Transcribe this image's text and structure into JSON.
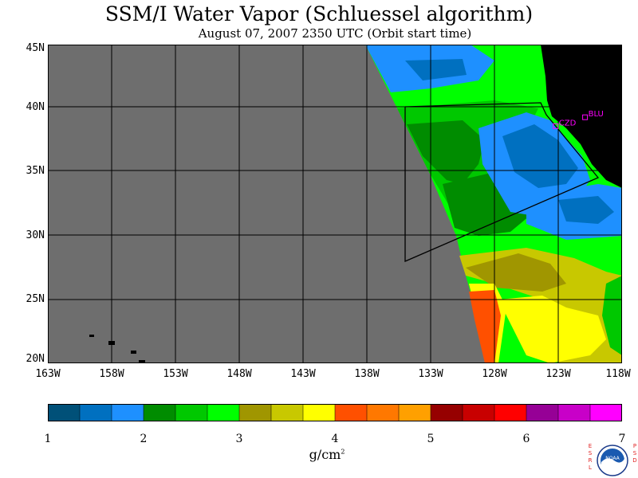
{
  "title": "SSM/I Water Vapor (Schluessel algorithm)",
  "subtitle": "August 07, 2007  2350 UTC  (Orbit start time)",
  "map": {
    "lat_labels": [
      "45N",
      "40N",
      "35N",
      "30N",
      "25N",
      "20N"
    ],
    "lon_labels": [
      "163W",
      "158W",
      "153W",
      "148W",
      "143W",
      "138W",
      "133W",
      "128W",
      "123W",
      "118W"
    ],
    "lat_range": [
      20,
      45
    ],
    "lon_range": [
      -163,
      -118
    ],
    "stations": [
      {
        "name": "CZD",
        "lat": 38.6,
        "lon": -123.2
      },
      {
        "name": "BLU",
        "lat": 39.3,
        "lon": -120.9
      }
    ],
    "colors": {
      "no_data": "#6e6e6e",
      "land": "#000000",
      "grid": "#000000"
    }
  },
  "colorbar": {
    "tick_labels": [
      "1",
      "2",
      "3",
      "4",
      "5",
      "6",
      "7"
    ],
    "range": [
      1,
      7
    ],
    "colors": [
      "#005078",
      "#0070c0",
      "#1e90ff",
      "#008c00",
      "#00c800",
      "#00ff00",
      "#a09600",
      "#c8c800",
      "#ffff00",
      "#ff5000",
      "#ff7800",
      "#ffa000",
      "#960000",
      "#c80000",
      "#ff0000",
      "#960096",
      "#c800c8",
      "#ff00ff"
    ],
    "units_base": "g/cm",
    "units_exp": "2"
  },
  "logo": {
    "left_text": "E S R L",
    "right_text": "P S D",
    "emblem_text": "NOAA"
  }
}
